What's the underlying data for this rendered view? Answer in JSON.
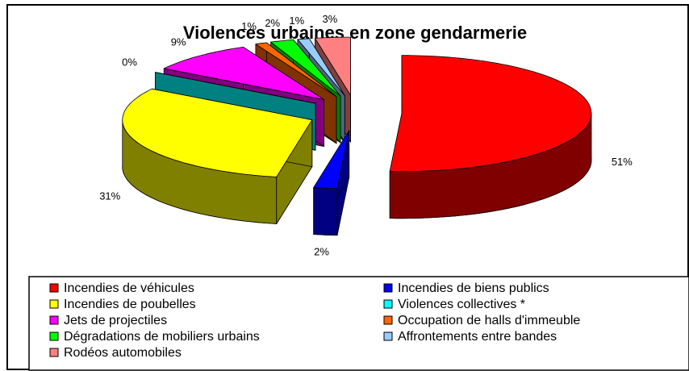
{
  "chart_data": {
    "type": "pie",
    "title": "Violences urbaines en zone gendarmerie",
    "categories": [
      "Incendies de véhicules",
      "Incendies de biens publics",
      "Incendies de poubelles",
      "Violences collectives *",
      "Jets de projectiles",
      "Occupation de halls d'immeuble",
      "Dégradations de mobiliers urbains",
      "Affrontements entre bandes",
      "Rodéos automobiles"
    ],
    "values": [
      51,
      2,
      31,
      0,
      9,
      1,
      2,
      1,
      3
    ],
    "value_labels": [
      "51%",
      "2%",
      "31%",
      "0%",
      "9%",
      "1%",
      "2%",
      "1%",
      "3%"
    ],
    "colors": [
      "#ff0000",
      "#0000ff",
      "#ffff00",
      "#00ffff",
      "#ff00ff",
      "#ff6600",
      "#00ff00",
      "#99ccff",
      "#ff8080"
    ],
    "legend": "bottom"
  }
}
